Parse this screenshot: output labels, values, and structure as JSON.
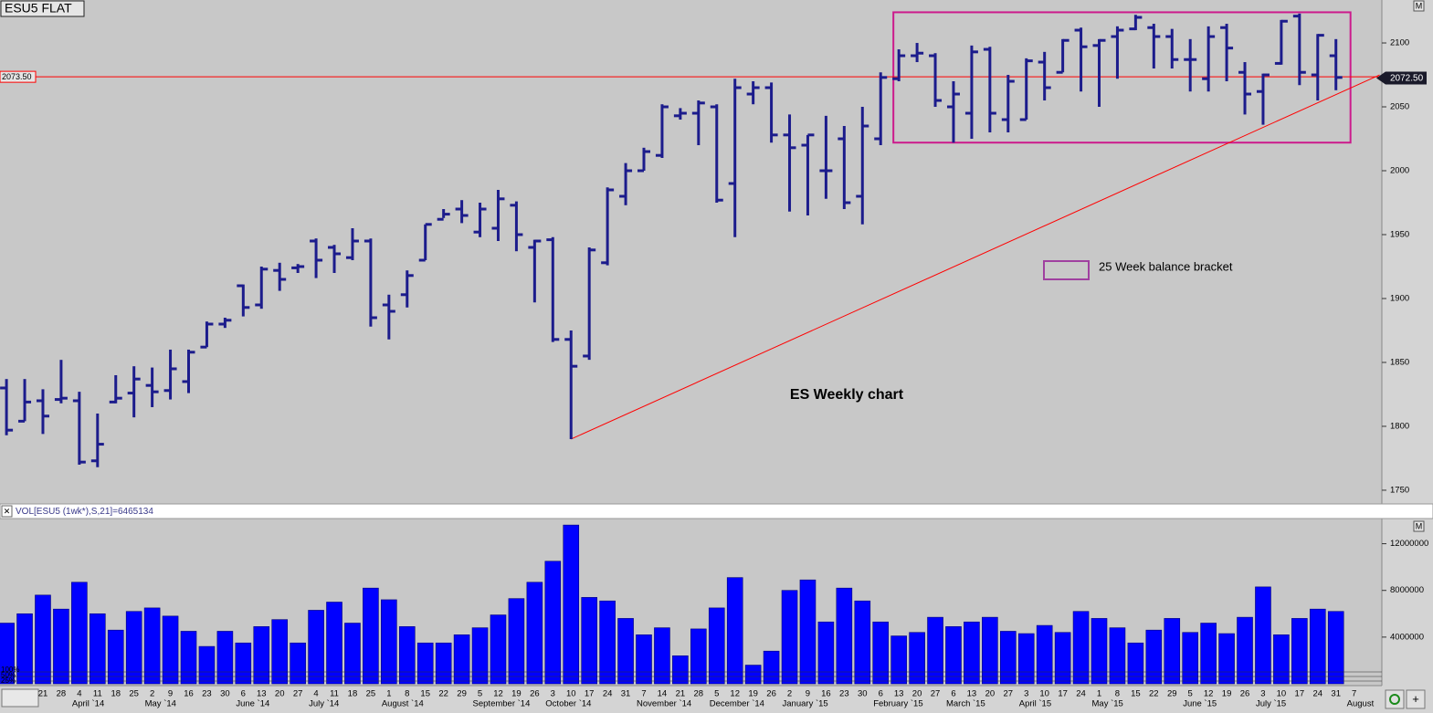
{
  "chart_data": [
    {
      "type": "ohlc",
      "title": "ESU5 FLAT",
      "panel_button": "M",
      "color": "#1c1c8c",
      "categories": [
        null,
        null,
        "21",
        "28",
        "4",
        "11",
        "18",
        "25",
        "2",
        "9",
        "16",
        "23",
        "30",
        "6",
        "13",
        "20",
        "27",
        "4",
        "11",
        "18",
        "25",
        "1",
        "8",
        "15",
        "22",
        "29",
        "5",
        "12",
        "19",
        "26",
        "3",
        "10",
        "17",
        "24",
        "31",
        "7",
        "14",
        "21",
        "28",
        "5",
        "12",
        "19",
        "26",
        "2",
        "9",
        "16",
        "23",
        "30",
        "6",
        "13",
        "20",
        "27",
        "6",
        "13",
        "20",
        "27",
        "3",
        "10",
        "17",
        "24",
        "1",
        "8",
        "15",
        "22",
        "29",
        "5",
        "12",
        "19",
        "26",
        "3",
        "10",
        "17",
        "24",
        "31",
        "7"
      ],
      "months": [
        {
          "value": 4,
          "label": "April `14"
        },
        {
          "value": 8,
          "label": "May `14"
        },
        {
          "value": 13,
          "label": "June `14"
        },
        {
          "value": 17,
          "label": "July `14"
        },
        {
          "value": 21,
          "label": "August `14"
        },
        {
          "value": 26,
          "label": "September `14"
        },
        {
          "value": 30,
          "label": "October `14"
        },
        {
          "value": 35,
          "label": "November `14"
        },
        {
          "value": 39,
          "label": "December `14"
        },
        {
          "value": 43,
          "label": "January `15"
        },
        {
          "value": 48,
          "label": "February `15"
        },
        {
          "value": 52,
          "label": "March `15"
        },
        {
          "value": 56,
          "label": "April `15"
        },
        {
          "value": 60,
          "label": "May `15"
        },
        {
          "value": 65,
          "label": "June `15"
        },
        {
          "value": 69,
          "label": "July `15"
        },
        {
          "value": 74,
          "label": "August"
        }
      ],
      "open": [
        1830,
        1804,
        1820,
        1821,
        1820,
        1773,
        1819,
        1826,
        1832,
        1828,
        1835,
        1862,
        1880,
        1910,
        1895,
        1922,
        1924,
        1945,
        1940,
        1932,
        1945,
        1895,
        1903,
        1930,
        1962,
        1970,
        1952,
        1955,
        1973,
        1940,
        1946,
        1868,
        1855,
        1928,
        1980,
        2000,
        2012,
        2043,
        2045,
        2050,
        1990,
        2060,
        2065,
        2028,
        2020,
        2000,
        2025,
        1980,
        2025,
        2072,
        2090,
        2090,
        2050,
        2045,
        2095,
        2040,
        2040,
        2085,
        2077,
        2110,
        2098,
        2105,
        2111,
        2112,
        2105,
        2087,
        2072,
        2112,
        2077,
        2062,
        2084,
        2121,
        2075,
        2090,
        null
      ],
      "high": [
        1837,
        1837,
        1829,
        1852,
        1827,
        1810,
        1840,
        1847,
        1846,
        1860,
        1860,
        1882,
        1885,
        1911,
        1925,
        1928,
        1927,
        1947,
        1942,
        1955,
        1947,
        1903,
        1922,
        1958,
        1970,
        1977,
        1975,
        1985,
        1976,
        1946,
        1948,
        1875,
        1940,
        1987,
        2006,
        2018,
        2052,
        2049,
        2055,
        2052,
        2072,
        2070,
        2069,
        2044,
        2028,
        2043,
        2035,
        2050,
        2077,
        2095,
        2100,
        2092,
        2070,
        2098,
        2097,
        2075,
        2088,
        2093,
        2103,
        2112,
        2103,
        2113,
        2122,
        2115,
        2111,
        2103,
        2113,
        2115,
        2085,
        2076,
        2118,
        2123,
        2107,
        2103,
        null
      ],
      "low": [
        1793,
        1804,
        1794,
        1818,
        1770,
        1768,
        1818,
        1807,
        1815,
        1821,
        1826,
        1862,
        1877,
        1886,
        1892,
        1906,
        1920,
        1916,
        1920,
        1930,
        1878,
        1868,
        1893,
        1930,
        1963,
        1959,
        1948,
        1945,
        1937,
        1897,
        1866,
        1790,
        1852,
        1926,
        1973,
        2000,
        2010,
        2040,
        2020,
        1975,
        1948,
        2052,
        2022,
        1968,
        1965,
        1978,
        1970,
        1958,
        2020,
        2070,
        2085,
        2050,
        2022,
        2025,
        2030,
        2030,
        2040,
        2055,
        2077,
        2062,
        2050,
        2072,
        2110,
        2080,
        2080,
        2062,
        2062,
        2070,
        2044,
        2036,
        2083,
        2067,
        2055,
        2063,
        null
      ],
      "close": [
        1797,
        1819,
        1808,
        1822,
        1772,
        1786,
        1822,
        1837,
        1827,
        1845,
        1858,
        1880,
        1883,
        1893,
        1923,
        1915,
        1925,
        1930,
        1935,
        1945,
        1885,
        1890,
        1918,
        1958,
        1966,
        1965,
        1970,
        1978,
        1950,
        1945,
        1868,
        1847,
        1938,
        1985,
        2000,
        2015,
        2050,
        2045,
        2053,
        1977,
        2065,
        2065,
        2028,
        2018,
        2028,
        2000,
        1975,
        2035,
        2073,
        2090,
        2092,
        2055,
        2060,
        2093,
        2045,
        2070,
        2086,
        2065,
        2102,
        2097,
        2102,
        2110,
        2120,
        2105,
        2087,
        2087,
        2105,
        2096,
        2060,
        2075,
        2117,
        2077,
        2106,
        2073,
        null
      ],
      "ylim": [
        1741.4,
        2133.6
      ],
      "yticks": [
        2100,
        2050,
        2000,
        1950,
        1900,
        1850,
        1800,
        1750
      ],
      "grid": false,
      "hline": {
        "value": 2073.5,
        "label": "2073.50",
        "color": "#ff0000"
      },
      "last_price": {
        "value": 2072.5,
        "label": "2072.50"
      },
      "trendline": {
        "x": [
          31,
          75.4
        ],
        "y": [
          1790,
          2075
        ],
        "color": "#ff0000"
      },
      "bracket": {
        "label": "25 Week balance bracket",
        "color": "#cc1a8c",
        "legend_color": "#a040a0",
        "xlim": [
          48.7,
          73.8
        ],
        "ylim": [
          2022,
          2124
        ]
      },
      "annotation": "ES Weekly chart"
    },
    {
      "type": "bar",
      "title": "VOL[ESU5 (1wk*),S,21]=6465134",
      "panel_button": "M",
      "color": "#0000ff",
      "zoom_labels": [
        "100%",
        "50%",
        "25%"
      ],
      "values": [
        5200000,
        6000000,
        7600000,
        6400000,
        8700000,
        6000000,
        4600000,
        6200000,
        6500000,
        5800000,
        4500000,
        3200000,
        4500000,
        3500000,
        4900000,
        5500000,
        3500000,
        6300000,
        7000000,
        5200000,
        8200000,
        7200000,
        4900000,
        3500000,
        3500000,
        4200000,
        4800000,
        5900000,
        7300000,
        8700000,
        10500000,
        13600000,
        7400000,
        7100000,
        5600000,
        4200000,
        4800000,
        2400000,
        4700000,
        6500000,
        9100000,
        1600000,
        2800000,
        8000000,
        8900000,
        5300000,
        8200000,
        7100000,
        5300000,
        4100000,
        4400000,
        5700000,
        4900000,
        5300000,
        5700000,
        4500000,
        4300000,
        5000000,
        4400000,
        6200000,
        5600000,
        4800000,
        3500000,
        4600000,
        5600000,
        4400000,
        5200000,
        4300000,
        5700000,
        8300000,
        4200000,
        5600000,
        6400000,
        6200000,
        null
      ],
      "ylim": [
        0,
        14000000
      ],
      "yticks": [
        12000000,
        8000000,
        4000000
      ],
      "grid": false
    }
  ]
}
